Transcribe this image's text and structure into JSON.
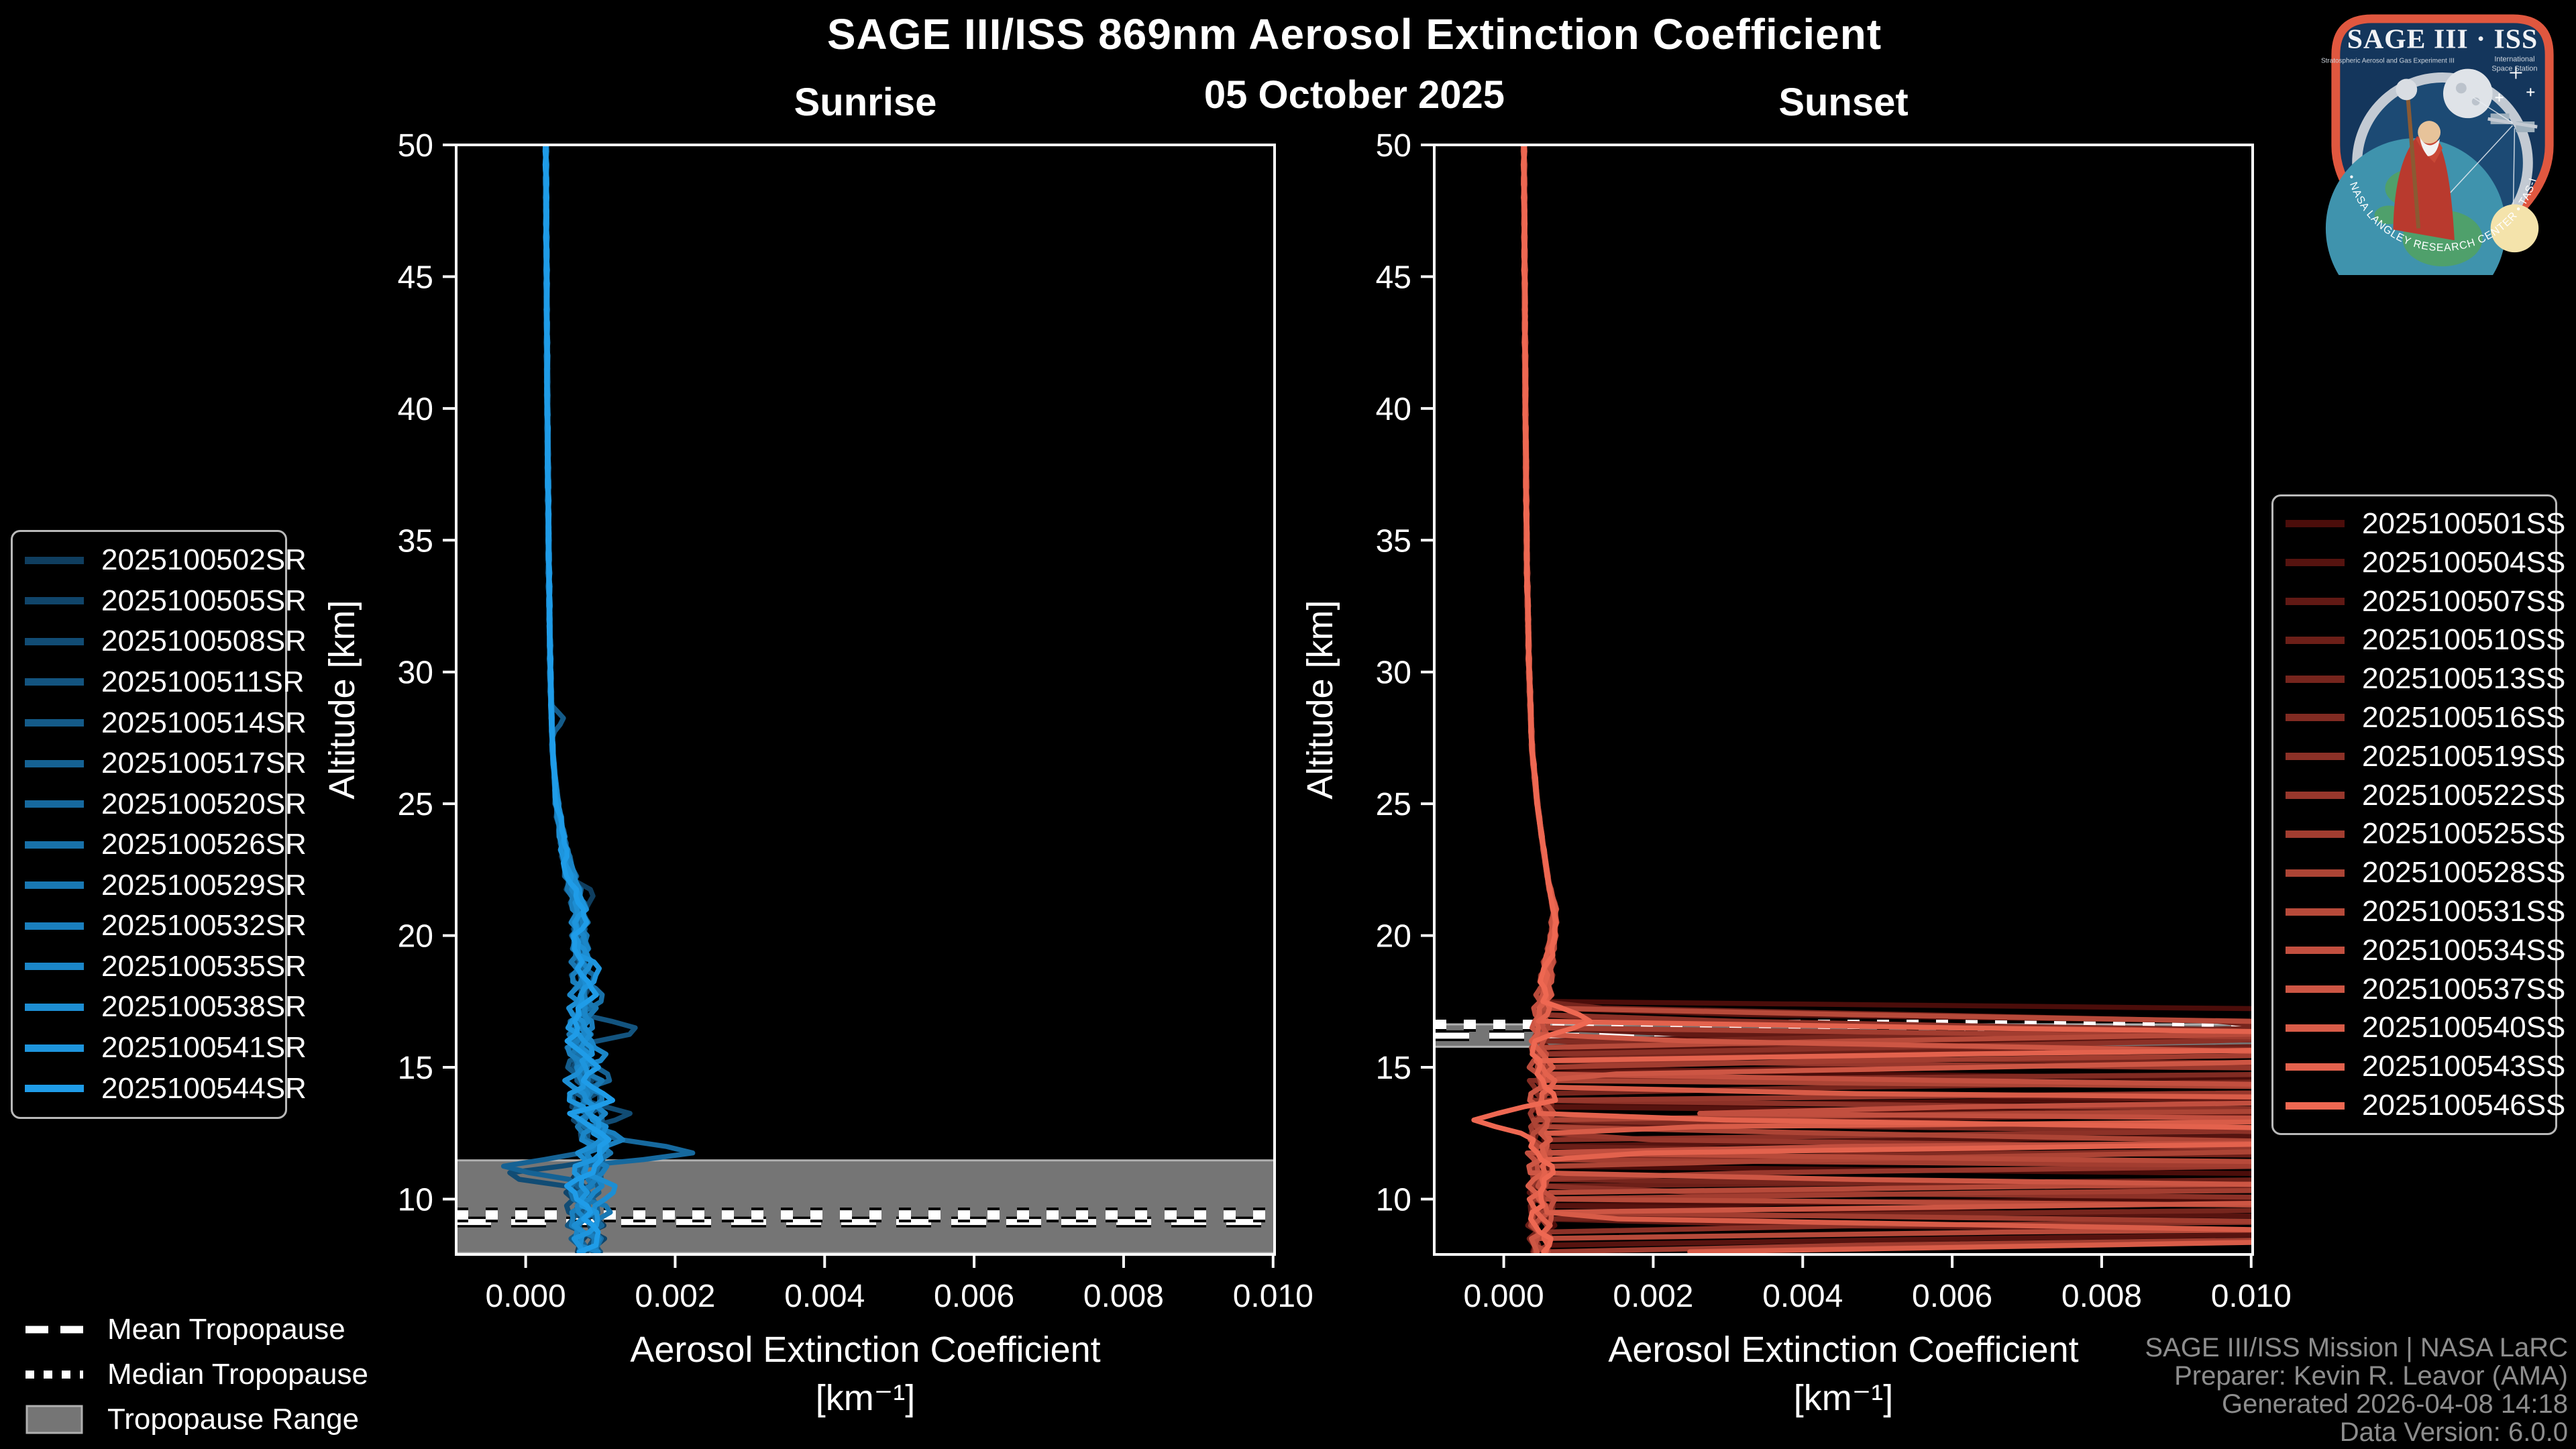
{
  "title": "SAGE III/ISS 869nm Aerosol Extinction Coefficient",
  "date": "05 October 2025",
  "colors": {
    "background": "#000000",
    "axis": "#ffffff",
    "tropopause_band": "#757575",
    "tropopause_band_edge": "#b0b0b0",
    "tropopause_line": "#ffffff",
    "attribution_text": "#8d8d8d",
    "sunrise_ramp_start": "#0f3e5f",
    "sunrise_ramp_end": "#1f9ce8",
    "sunset_ramp_start": "#4b0d0a",
    "sunset_ramp_end": "#ee6852"
  },
  "tropopause_legend": {
    "mean_label": "Mean Tropopause",
    "median_label": "Median Tropopause",
    "range_label": "Tropopause Range"
  },
  "attribution": {
    "line1": "SAGE III/ISS Mission | NASA LaRC",
    "line2": "Preparer: Kevin R. Leavor (AMA)",
    "line3": "Generated 2026-04-08 14:18",
    "line4": "Data Version: 6.0.0"
  },
  "logo": {
    "title": "SAGE III · ISS",
    "subtitle_left": "Stratospheric Aerosol and Gas Experiment III",
    "subtitle_right1": "International",
    "subtitle_right2": "Space Station",
    "ring_text": "BALL • NASA LANGLEY RESEARCH CENTER • TAS-I • ESA"
  },
  "chart_data": [
    {
      "id": "sunrise",
      "type": "line",
      "title": "Sunrise",
      "xlabel": "Aerosol Extinction Coefficient",
      "xunit": "[km⁻¹]",
      "ylabel": "Altitude [km]",
      "xlim": [
        -0.00093,
        0.01002
      ],
      "ylim": [
        7.9,
        50
      ],
      "grid": false,
      "legend_position": "outside-left",
      "xticks": [
        {
          "v": 0.0,
          "label": "0.000"
        },
        {
          "v": 0.002,
          "label": "0.002"
        },
        {
          "v": 0.004,
          "label": "0.004"
        },
        {
          "v": 0.006,
          "label": "0.006"
        },
        {
          "v": 0.008,
          "label": "0.008"
        },
        {
          "v": 0.01,
          "label": "0.010"
        }
      ],
      "yticks": [
        10,
        15,
        20,
        25,
        30,
        35,
        40,
        45,
        50
      ],
      "tropopause": {
        "mean_km": 9.13,
        "median_km": 9.4,
        "range_km": [
          7.95,
          11.47
        ]
      },
      "base_profile": [
        [
          50,
          0.00027
        ],
        [
          40,
          0.00029
        ],
        [
          34,
          0.00031
        ],
        [
          30,
          0.00033
        ],
        [
          27,
          0.00036
        ],
        [
          25,
          0.00042
        ],
        [
          23.5,
          0.0005
        ],
        [
          22,
          0.00062
        ],
        [
          21,
          0.00072
        ],
        [
          20,
          0.00072
        ],
        [
          19,
          0.00075
        ],
        [
          18,
          0.00078
        ],
        [
          17,
          0.00075
        ],
        [
          16,
          0.00072
        ],
        [
          15,
          0.00075
        ],
        [
          14,
          0.0008
        ],
        [
          13,
          0.00085
        ],
        [
          12,
          0.00095
        ],
        [
          11,
          0.00085
        ],
        [
          10,
          0.00075
        ],
        [
          9,
          0.0008
        ],
        [
          7.9,
          0.00085
        ]
      ],
      "noise": {
        "start_km": 26,
        "full_km": 14,
        "min_amp": 1.2e-05,
        "max_amp": 0.00027
      },
      "spike_width_km": 0.55,
      "series": [
        {
          "name": "2025100502SR",
          "color": "#0f3e5f",
          "seed": 1,
          "spikes": [
            [
              21.6,
              0.00095
            ]
          ]
        },
        {
          "name": "2025100505SR",
          "color": "#10456a",
          "seed": 2,
          "spikes": []
        },
        {
          "name": "2025100508SR",
          "color": "#114c74",
          "seed": 3,
          "spikes": [
            [
              13.2,
              0.00145
            ],
            [
              10.9,
              -0.00045
            ]
          ]
        },
        {
          "name": "2025100511SR",
          "color": "#13547f",
          "seed": 4,
          "spikes": [
            [
              16.4,
              0.0016
            ]
          ]
        },
        {
          "name": "2025100514SR",
          "color": "#145b89",
          "seed": 5,
          "spikes": [
            [
              28.2,
              0.00052
            ]
          ]
        },
        {
          "name": "2025100517SR",
          "color": "#156294",
          "seed": 6,
          "spikes": [
            [
              14.6,
              0.00125
            ],
            [
              11.2,
              -0.0004
            ]
          ]
        },
        {
          "name": "2025100520SR",
          "color": "#16699e",
          "seed": 7,
          "spikes": [
            [
              11.8,
              0.00235
            ]
          ]
        },
        {
          "name": "2025100526SR",
          "color": "#1871a9",
          "seed": 8,
          "spikes": [
            [
              17.6,
              0.00105
            ]
          ]
        },
        {
          "name": "2025100529SR",
          "color": "#1978b3",
          "seed": 9,
          "spikes": [
            [
              9.6,
              0.00125
            ]
          ]
        },
        {
          "name": "2025100532SR",
          "color": "#1a7fbe",
          "seed": 10,
          "spikes": [
            [
              12.3,
              0.00135
            ]
          ]
        },
        {
          "name": "2025100535SR",
          "color": "#1b86c8",
          "seed": 11,
          "spikes": [
            [
              15.4,
              0.00115
            ]
          ]
        },
        {
          "name": "2025100538SR",
          "color": "#1d8ed3",
          "seed": 12,
          "spikes": [
            [
              10.4,
              0.0013
            ]
          ]
        },
        {
          "name": "2025100541SR",
          "color": "#1e95dd",
          "seed": 13,
          "spikes": [
            [
              18.8,
              0.001
            ]
          ]
        },
        {
          "name": "2025100544SR",
          "color": "#1f9ce8",
          "seed": 14,
          "spikes": [
            [
              13.8,
              0.0012
            ]
          ]
        }
      ]
    },
    {
      "id": "sunset",
      "type": "line",
      "title": "Sunset",
      "xlabel": "Aerosol Extinction Coefficient",
      "xunit": "[km⁻¹]",
      "ylabel": "Altitude [km]",
      "xlim": [
        -0.00093,
        0.01002
      ],
      "ylim": [
        7.9,
        50
      ],
      "grid": false,
      "legend_position": "outside-right",
      "xticks": [
        {
          "v": 0.0,
          "label": "0.000"
        },
        {
          "v": 0.002,
          "label": "0.002"
        },
        {
          "v": 0.004,
          "label": "0.004"
        },
        {
          "v": 0.006,
          "label": "0.006"
        },
        {
          "v": 0.008,
          "label": "0.008"
        },
        {
          "v": 0.01,
          "label": "0.010"
        }
      ],
      "yticks": [
        10,
        15,
        20,
        25,
        30,
        35,
        40,
        45,
        50
      ],
      "tropopause": {
        "mean_km": 16.2,
        "median_km": 16.63,
        "range_km": [
          15.78,
          16.63
        ]
      },
      "base_profile": [
        [
          50,
          0.00027
        ],
        [
          40,
          0.00029
        ],
        [
          34,
          0.00031
        ],
        [
          30,
          0.00034
        ],
        [
          27,
          0.00038
        ],
        [
          25,
          0.00045
        ],
        [
          23.5,
          0.00052
        ],
        [
          22,
          0.0006
        ],
        [
          21,
          0.00068
        ],
        [
          20,
          0.00066
        ],
        [
          19,
          0.0006
        ],
        [
          18,
          0.00055
        ],
        [
          17,
          0.0005
        ],
        [
          16,
          0.00048
        ],
        [
          15,
          0.0005
        ],
        [
          14,
          0.00052
        ],
        [
          13,
          0.0005
        ],
        [
          12,
          0.00048
        ],
        [
          11,
          0.0005
        ],
        [
          10,
          0.00052
        ],
        [
          9,
          0.0005
        ],
        [
          7.9,
          0.0005
        ]
      ],
      "noise": {
        "start_km": 22,
        "full_km": 14,
        "min_amp": 1.2e-05,
        "max_amp": 0.0002
      },
      "spike_width_km": 0.7,
      "series": [
        {
          "name": "2025100501SS",
          "color": "#4b0d0a",
          "seed": 1,
          "spikes": [
            [
              16.8,
              0.025
            ],
            [
              14.2,
              0.02
            ],
            [
              10.5,
              0.03
            ]
          ]
        },
        {
          "name": "2025100504SS",
          "color": "#56130f",
          "seed": 2,
          "spikes": [
            [
              16.4,
              0.02
            ],
            [
              12.8,
              0.025
            ],
            [
              9.0,
              0.02
            ]
          ]
        },
        {
          "name": "2025100507SS",
          "color": "#611914",
          "seed": 3,
          "spikes": [
            [
              15.6,
              0.03
            ],
            [
              13.5,
              0.015
            ],
            [
              8.4,
              0.025
            ]
          ]
        },
        {
          "name": "2025100510SS",
          "color": "#6c1f18",
          "seed": 4,
          "spikes": [
            [
              16.1,
              0.018
            ],
            [
              11.2,
              0.03
            ]
          ]
        },
        {
          "name": "2025100513SS",
          "color": "#76251d",
          "seed": 5,
          "spikes": [
            [
              16.6,
              0.012
            ],
            [
              14.8,
              0.02
            ],
            [
              10.0,
              0.025
            ]
          ]
        },
        {
          "name": "2025100516SS",
          "color": "#812b22",
          "seed": 6,
          "spikes": [
            [
              15.2,
              0.03
            ],
            [
              12.2,
              0.02
            ]
          ]
        },
        {
          "name": "2025100519SS",
          "color": "#8c3127",
          "seed": 7,
          "spikes": [
            [
              16.2,
              0.013
            ],
            [
              13.0,
              0.025
            ],
            [
              9.6,
              0.03
            ]
          ]
        },
        {
          "name": "2025100522SS",
          "color": "#97372c",
          "seed": 8,
          "spikes": [
            [
              14.5,
              0.03
            ],
            [
              11.6,
              0.02
            ]
          ]
        },
        {
          "name": "2025100525SS",
          "color": "#a23d30",
          "seed": 9,
          "spikes": [
            [
              15.8,
              0.02
            ],
            [
              10.8,
              0.03
            ],
            [
              8.8,
              0.02
            ]
          ]
        },
        {
          "name": "2025100528SS",
          "color": "#ac4435",
          "seed": 10,
          "spikes": [
            [
              13.8,
              0.03
            ],
            [
              12.0,
              0.014
            ]
          ]
        },
        {
          "name": "2025100531SS",
          "color": "#b74a3a",
          "seed": 11,
          "spikes": [
            [
              16.5,
              0.015
            ],
            [
              11.0,
              0.025
            ],
            [
              9.3,
              0.03
            ]
          ]
        },
        {
          "name": "2025100534SS",
          "color": "#c24f3f",
          "seed": 12,
          "spikes": [
            [
              14.0,
              0.02
            ],
            [
              12.6,
              0.03
            ]
          ]
        },
        {
          "name": "2025100537SS",
          "color": "#cd5644",
          "seed": 13,
          "spikes": [
            [
              15.4,
              0.014
            ],
            [
              10.2,
              0.02
            ]
          ]
        },
        {
          "name": "2025100540SS",
          "color": "#d85c48",
          "seed": 14,
          "spikes": [
            [
              13.4,
              0.03
            ],
            [
              8.6,
              0.015
            ]
          ]
        },
        {
          "name": "2025100543SS",
          "color": "#e3624d",
          "seed": 15,
          "spikes": [
            [
              16.0,
              0.02
            ],
            [
              12.4,
              0.018
            ]
          ]
        },
        {
          "name": "2025100546SS",
          "color": "#ee6852",
          "seed": 16,
          "spikes": [
            [
              16.8,
              0.0012
            ],
            [
              13.0,
              -0.0004
            ]
          ]
        }
      ]
    }
  ]
}
